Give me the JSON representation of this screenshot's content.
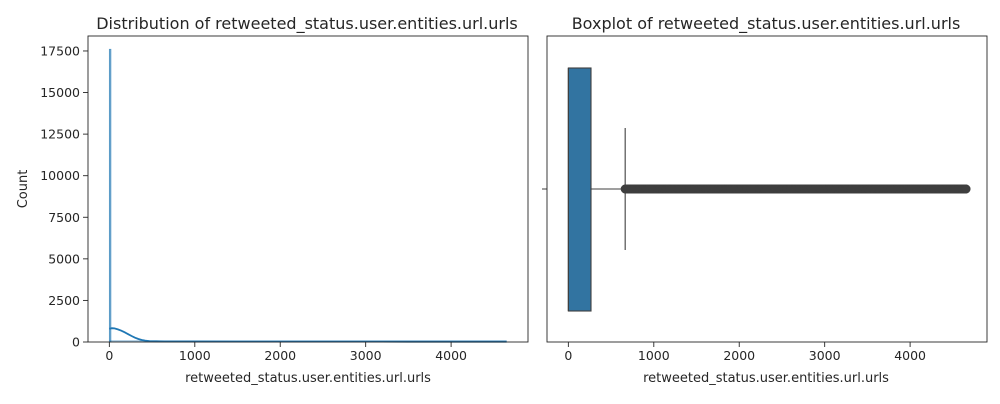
{
  "chart_data": [
    {
      "type": "histogram",
      "title": "Distribution of retweeted_status.user.entities.url.urls",
      "xlabel": "retweeted_status.user.entities.url.urls",
      "ylabel": "Count",
      "xlim": [
        -250,
        4900
      ],
      "ylim": [
        0,
        18400
      ],
      "xticks": [
        0,
        1000,
        2000,
        3000,
        4000
      ],
      "yticks": [
        0,
        2500,
        5000,
        7500,
        10000,
        12500,
        15000,
        17500
      ],
      "bars": [
        {
          "x0": 0,
          "x1": 18,
          "count": 17600
        }
      ],
      "kde": {
        "x": [
          0,
          30,
          60,
          100,
          140,
          180,
          220,
          260,
          300,
          340,
          380,
          420,
          470,
          550,
          650,
          800,
          1000,
          1500,
          2500,
          3500,
          4650
        ],
        "y": [
          800,
          830,
          820,
          760,
          680,
          580,
          470,
          360,
          260,
          180,
          120,
          80,
          55,
          40,
          32,
          28,
          26,
          24,
          22,
          20,
          18
        ]
      },
      "color": "#1f77b4"
    },
    {
      "type": "boxplot",
      "title": "Boxplot of retweeted_status.user.entities.url.urls",
      "xlabel": "retweeted_status.user.entities.url.urls",
      "xlim": [
        -250,
        4900
      ],
      "xticks": [
        0,
        1000,
        2000,
        3000,
        4000
      ],
      "box": {
        "q1": 0,
        "q3": 265,
        "median": 0,
        "whisker_low": 0,
        "whisker_high": 665
      },
      "outliers_range": [
        665,
        4660
      ],
      "color": "#3274a1"
    }
  ]
}
